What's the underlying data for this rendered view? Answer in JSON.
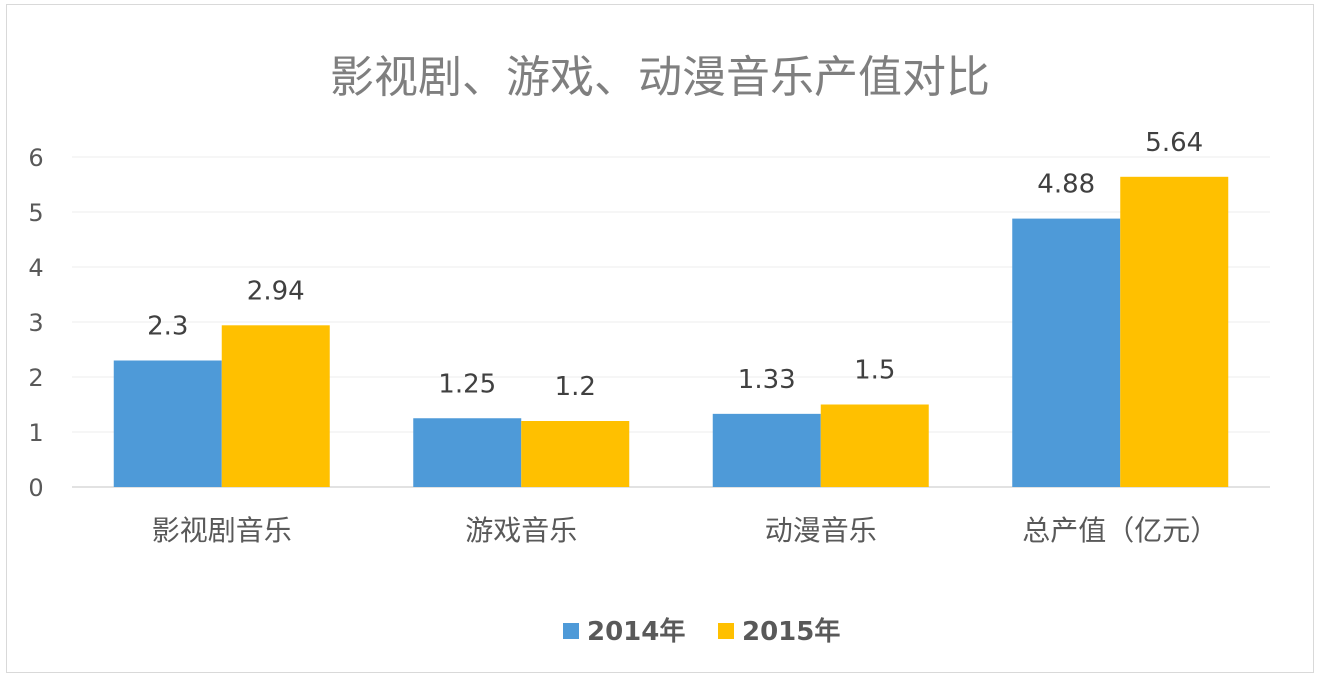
{
  "chart_data": {
    "type": "bar",
    "title": "影视剧、游戏、动漫音乐产值对比",
    "categories": [
      "影视剧音乐",
      "游戏音乐",
      "动漫音乐",
      "总产值（亿元）"
    ],
    "series": [
      {
        "name": "2014年",
        "values": [
          2.3,
          1.25,
          1.33,
          4.88
        ],
        "color": "#4e9ad8"
      },
      {
        "name": "2015年",
        "values": [
          2.94,
          1.2,
          1.5,
          5.64
        ],
        "color": "#ffc000"
      }
    ],
    "data_labels": [
      [
        "2.3",
        "1.25",
        "1.33",
        "4.88"
      ],
      [
        "2.94",
        "1.2",
        "1.5",
        "5.64"
      ]
    ],
    "ylim": [
      0,
      6
    ],
    "yticks": [
      "0",
      "1",
      "2",
      "3",
      "4",
      "5",
      "6"
    ],
    "xlabel": "",
    "ylabel": "",
    "grid": true,
    "legend_position": "bottom"
  }
}
